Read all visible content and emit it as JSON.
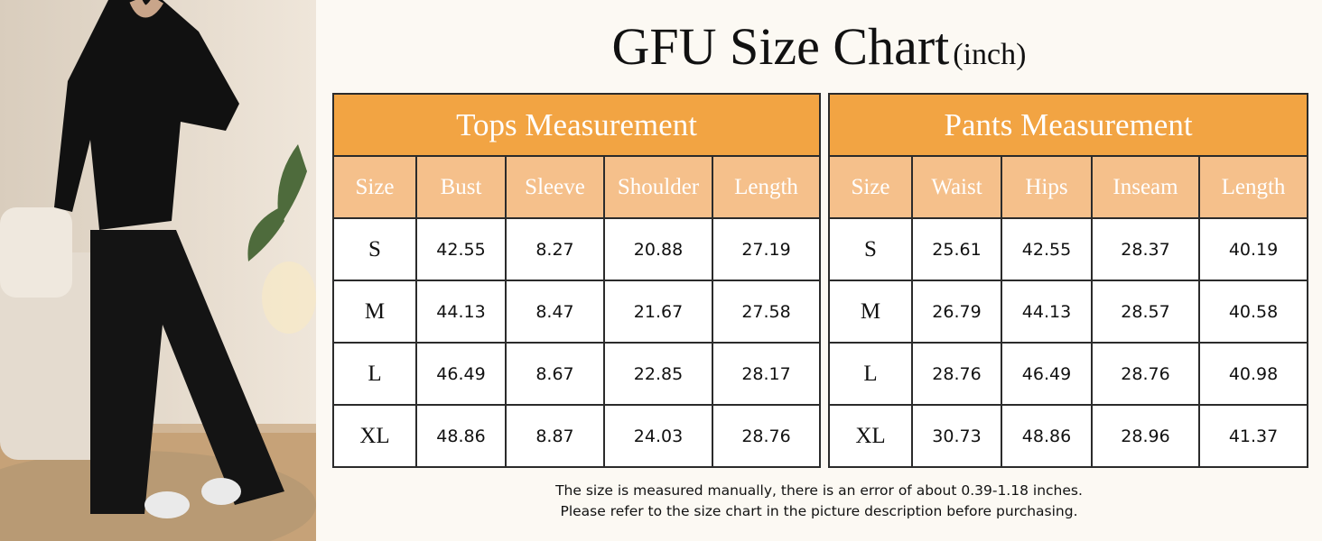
{
  "title": {
    "main": "GFU Size Chart",
    "unit": "(inch)"
  },
  "tables": [
    {
      "title": "Tops Measurement",
      "columns": [
        "Size",
        "Bust",
        "Sleeve",
        "Shoulder",
        "Length"
      ],
      "rows": [
        [
          "S",
          42.55,
          8.27,
          20.88,
          27.19
        ],
        [
          "M",
          44.13,
          8.47,
          21.67,
          27.58
        ],
        [
          "L",
          46.49,
          8.67,
          22.85,
          28.17
        ],
        [
          "XL",
          48.86,
          8.87,
          24.03,
          28.76
        ]
      ]
    },
    {
      "title": "Pants Measurement",
      "columns": [
        "Size",
        "Waist",
        "Hips",
        "Inseam",
        "Length"
      ],
      "rows": [
        [
          "S",
          25.61,
          42.55,
          28.37,
          40.19
        ],
        [
          "M",
          26.79,
          44.13,
          28.57,
          40.58
        ],
        [
          "L",
          28.76,
          46.49,
          28.76,
          40.98
        ],
        [
          "XL",
          30.73,
          48.86,
          28.96,
          41.37
        ]
      ]
    }
  ],
  "notes": [
    "The size is measured manually, there is an error of about 0.39-1.18 inches.",
    "Please refer to the size chart in the picture description before purchasing."
  ]
}
